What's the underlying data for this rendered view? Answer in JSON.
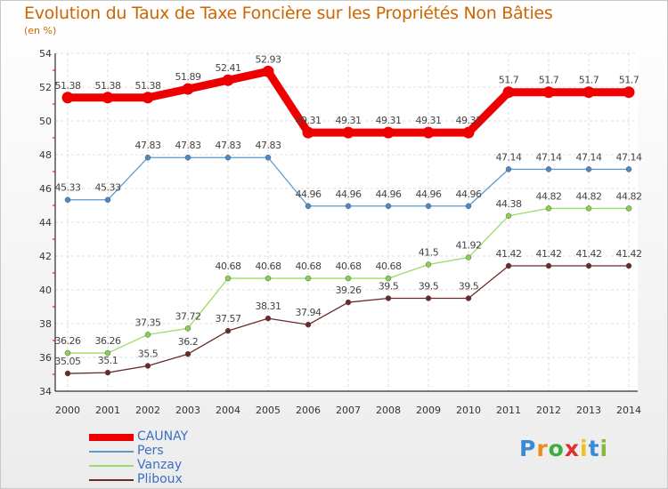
{
  "title": "Evolution du Taux de Taxe Foncière sur les Propriétés Non Bâties",
  "subtitle": "(en %)",
  "logo": {
    "letters": [
      "P",
      "r",
      "o",
      "x",
      "i",
      "t",
      "i"
    ],
    "colors": [
      "#3a8ad8",
      "#f08a1c",
      "#3fae3f",
      "#e03030",
      "#f0c020",
      "#3a8ad8",
      "#8ab83a"
    ]
  },
  "chart_data": {
    "type": "line",
    "title": "Evolution du Taux de Taxe Foncière sur les Propriétés Non Bâties",
    "ylabel": "(en %)",
    "xlabel": "",
    "ylim": [
      34,
      54
    ],
    "yticks": [
      34,
      36,
      38,
      40,
      42,
      44,
      46,
      48,
      50,
      52,
      54
    ],
    "grid": true,
    "legend": "bottom-left",
    "x": [
      "2000",
      "2001",
      "2002",
      "2003",
      "2004",
      "2005",
      "2006",
      "2007",
      "2008",
      "2009",
      "2010",
      "2011",
      "2012",
      "2013",
      "2014"
    ],
    "series": [
      {
        "name": "CAUNAY",
        "color": "#ee0000",
        "labels": [
          "51.38",
          "51.38",
          "51.38",
          "51.89",
          "52.41",
          "52.93",
          "49.31",
          "49.31",
          "49.31",
          "49.31",
          "49.31",
          "51.7",
          "51.7",
          "51.7",
          "51.7"
        ],
        "values": [
          51.38,
          51.38,
          51.38,
          51.89,
          52.41,
          52.93,
          49.31,
          49.31,
          49.31,
          49.31,
          49.31,
          51.7,
          51.7,
          51.7,
          51.7
        ]
      },
      {
        "name": "Pers",
        "color": "#5a9bd0",
        "labels": [
          "45.33",
          "45.33",
          "47.83",
          "47.83",
          "47.83",
          "47.83",
          "44.96",
          "44.96",
          "44.96",
          "44.96",
          "44.96",
          "47.14",
          "47.14",
          "47.14",
          "47.14"
        ],
        "values": [
          45.33,
          45.33,
          47.83,
          47.83,
          47.83,
          47.83,
          44.96,
          44.96,
          44.96,
          44.96,
          44.96,
          47.14,
          47.14,
          47.14,
          47.14
        ]
      },
      {
        "name": "Vanzay",
        "color": "#99dd66",
        "labels": [
          "36.26",
          "36.26",
          "37.35",
          "37.72",
          "40.68",
          "40.68",
          "40.68",
          "40.68",
          "40.68",
          "41.5",
          "41.92",
          "44.38",
          "44.82",
          "44.82",
          "44.82"
        ],
        "values": [
          36.26,
          36.26,
          37.35,
          37.72,
          40.68,
          40.68,
          40.68,
          40.68,
          40.68,
          41.5,
          41.92,
          44.38,
          44.82,
          44.82,
          44.82
        ]
      },
      {
        "name": "Pliboux",
        "color": "#6b2a2a",
        "labels": [
          "35.05",
          "35.1",
          "35.5",
          "36.2",
          "37.57",
          "38.31",
          "37.94",
          "39.26",
          "39.5",
          "39.5",
          "39.5",
          "41.42",
          "41.42",
          "41.42",
          "41.42"
        ],
        "values": [
          35.05,
          35.1,
          35.5,
          36.2,
          37.57,
          38.31,
          37.94,
          39.26,
          39.5,
          39.5,
          39.5,
          41.42,
          41.42,
          41.42,
          41.42
        ]
      }
    ]
  }
}
